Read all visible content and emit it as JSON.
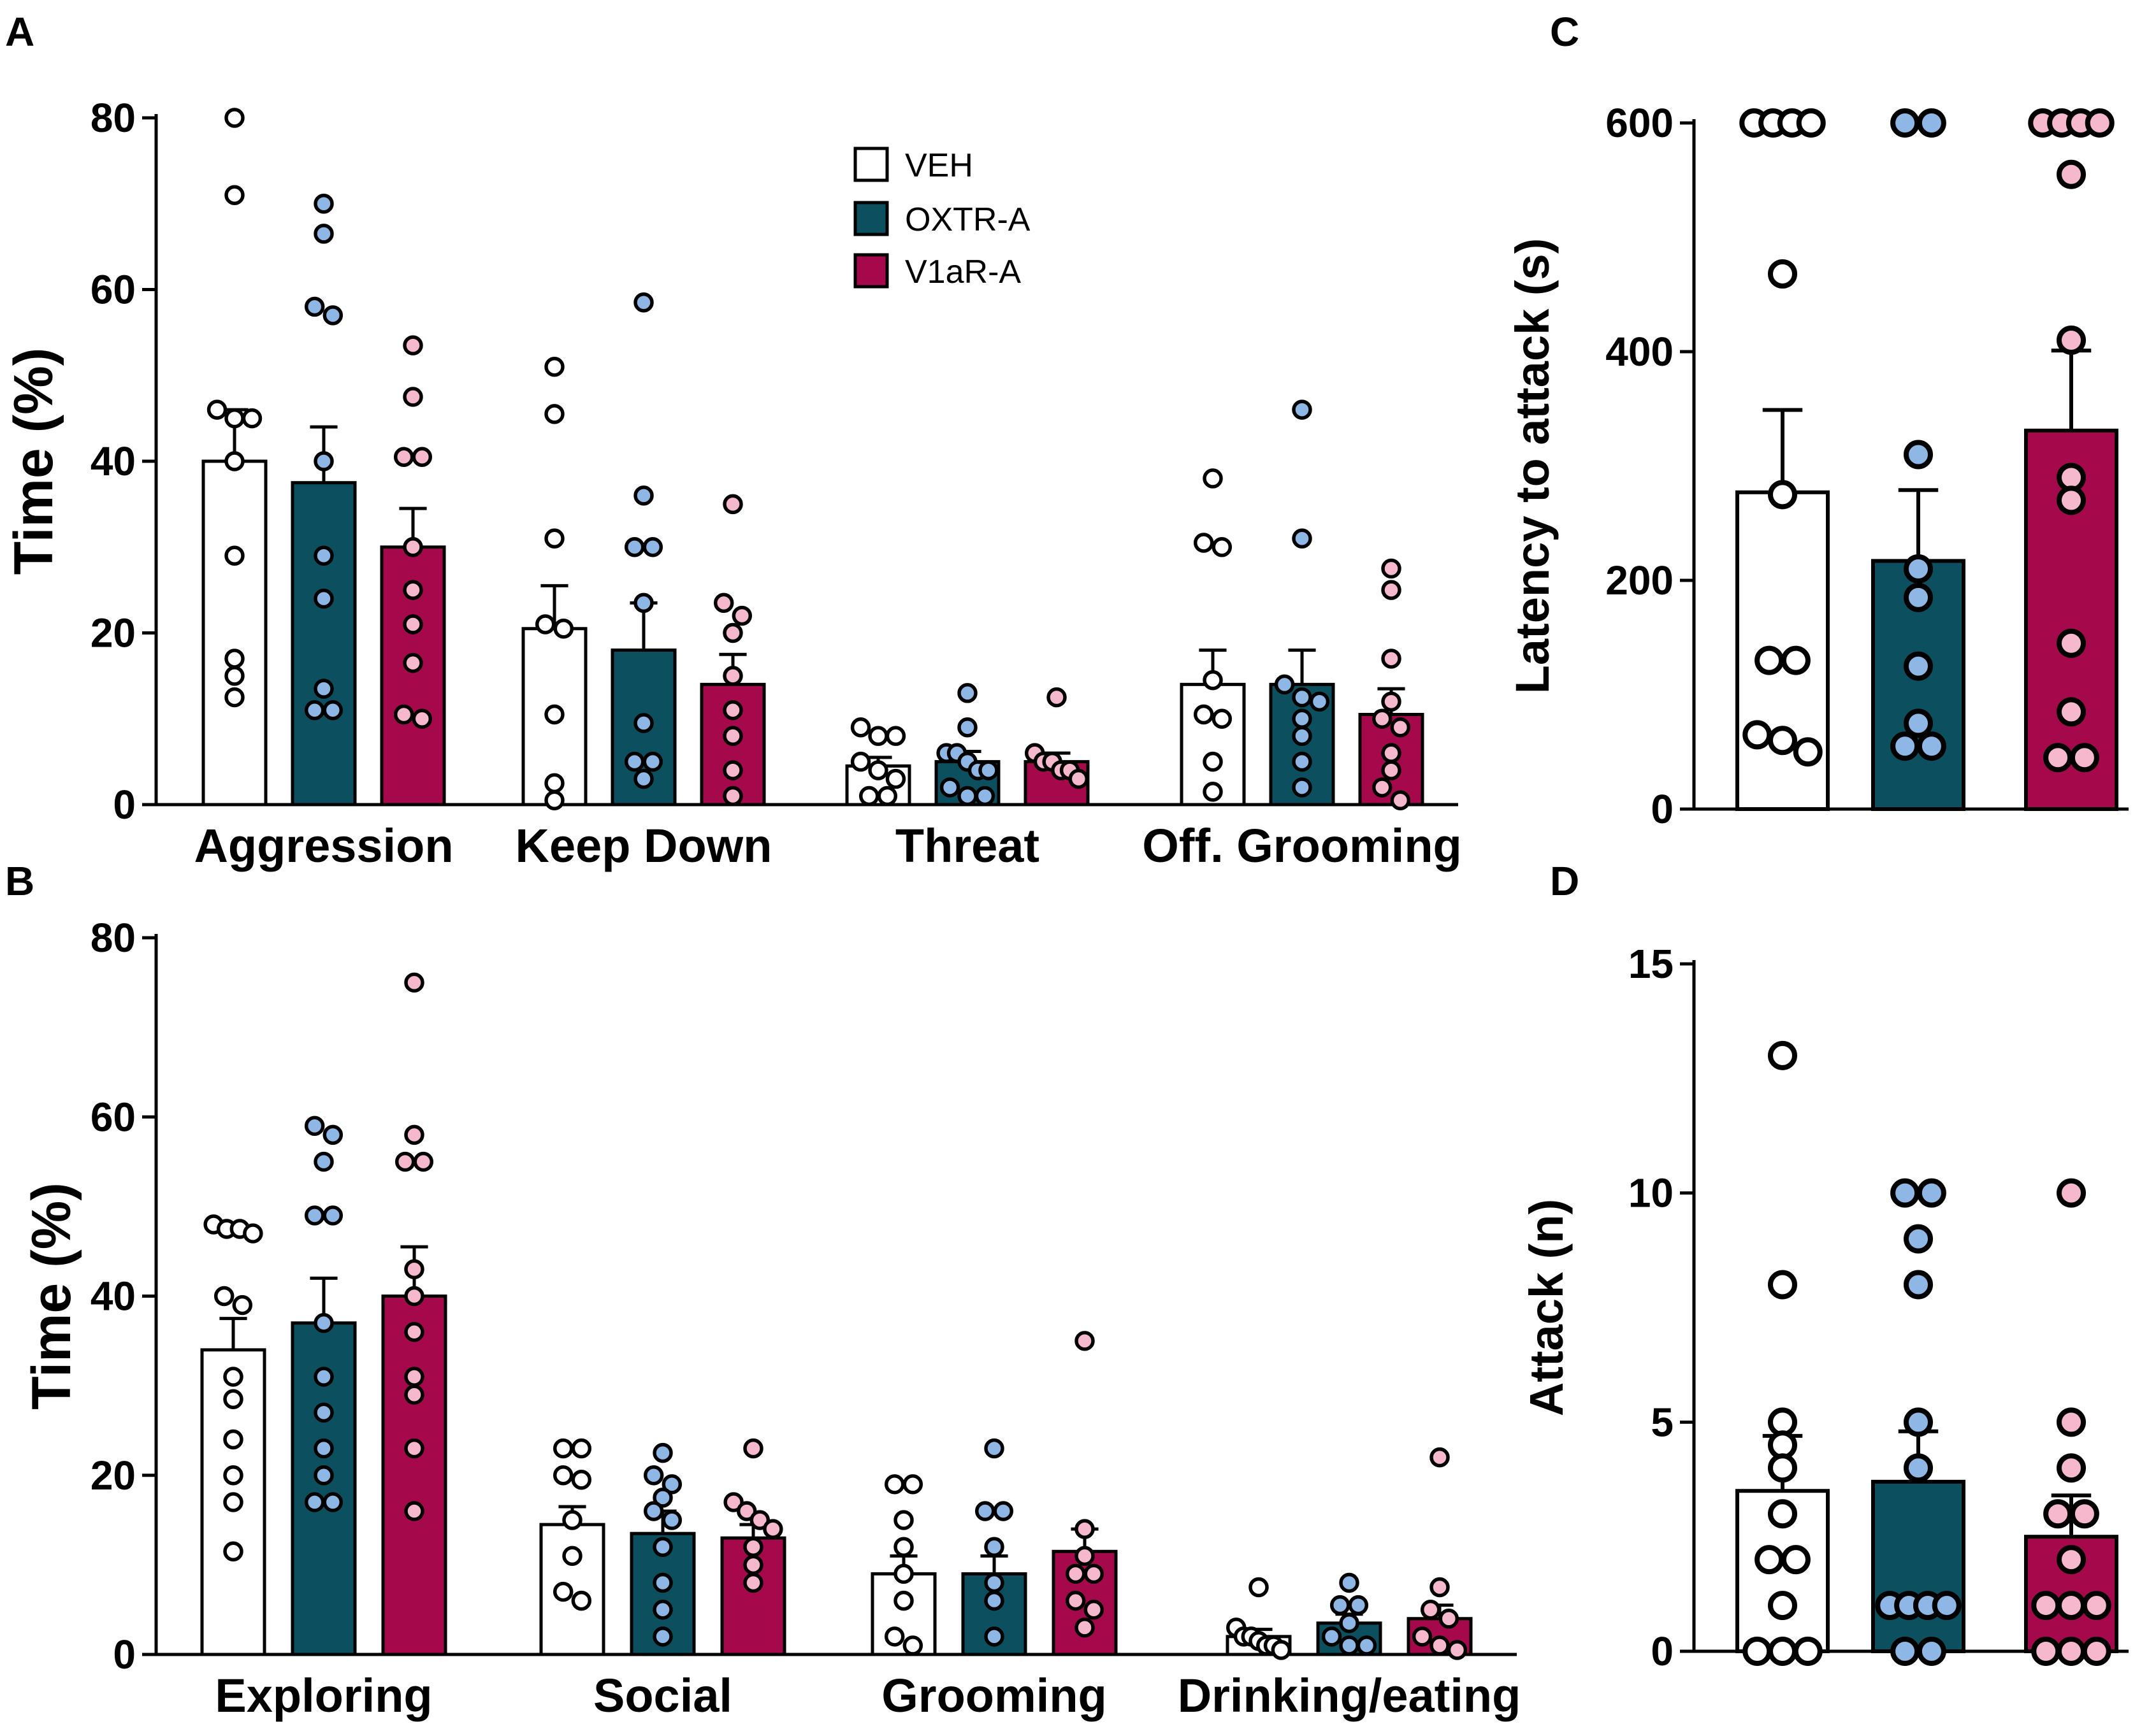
{
  "colors": {
    "VEH": "#ffffff",
    "OXTR-A": "#0c4f5f",
    "V1aR-A": "#a5094c",
    "VEH_dot": "#ffffff",
    "OXTR-A_dot": "#8fb7e6",
    "V1aR-A_dot": "#f5b8cc"
  },
  "legend": [
    "VEH",
    "OXTR-A",
    "V1aR-A"
  ],
  "chart_data": [
    {
      "panel": "A",
      "type": "bar",
      "ylabel": "Time (%)",
      "ylim": [
        0,
        80
      ],
      "yticks": [
        0,
        20,
        40,
        60,
        80
      ],
      "categories": [
        "Aggression",
        "Keep Down",
        "Threat",
        "Off. Grooming"
      ],
      "series": [
        {
          "name": "VEH",
          "values": [
            40,
            20.5,
            4.5,
            14
          ],
          "sem": [
            6,
            5,
            1,
            4
          ],
          "points": [
            [
              80,
              71,
              46,
              45,
              45,
              40,
              29,
              17,
              15,
              12.5
            ],
            [
              51,
              45.5,
              31,
              21,
              20.5,
              10.5,
              2.5,
              0.5
            ],
            [
              8,
              8,
              9,
              5,
              4,
              3,
              1,
              1
            ],
            [
              38,
              30.5,
              30,
              14.5,
              10.5,
              10,
              5,
              1.5
            ]
          ]
        },
        {
          "name": "OXTR-A",
          "values": [
            37.5,
            18,
            5,
            14
          ],
          "sem": [
            6.5,
            5.5,
            1.2,
            4
          ],
          "points": [
            [
              70,
              66.5,
              58,
              57,
              40,
              29,
              24,
              13.5,
              11,
              11
            ],
            [
              58.5,
              36,
              30,
              30,
              23.5,
              9.5,
              5,
              5,
              3
            ],
            [
              13,
              9,
              6,
              6,
              5,
              4,
              4,
              2,
              1,
              1
            ],
            [
              46,
              31,
              14,
              12.5,
              12,
              10,
              8,
              5,
              2
            ]
          ]
        },
        {
          "name": "V1aR-A",
          "values": [
            30,
            14,
            5,
            10.5
          ],
          "sem": [
            4.5,
            3.5,
            1,
            3
          ],
          "points": [
            [
              53.5,
              47.5,
              40.5,
              40.5,
              30,
              25,
              21,
              16.5,
              10.5,
              10
            ],
            [
              35,
              23.5,
              22,
              20,
              15,
              11,
              8,
              4,
              1
            ],
            [
              12.5,
              6,
              5,
              5,
              4,
              4,
              3
            ],
            [
              27.5,
              25,
              17,
              12,
              10,
              9,
              6,
              4,
              2,
              0.5
            ]
          ]
        }
      ]
    },
    {
      "panel": "B",
      "type": "bar",
      "ylabel": "Time (%)",
      "ylim": [
        0,
        80
      ],
      "yticks": [
        0,
        20,
        40,
        60,
        80
      ],
      "categories": [
        "Exploring",
        "Social",
        "Grooming",
        "Drinking/eating"
      ],
      "series": [
        {
          "name": "VEH",
          "values": [
            34,
            14.5,
            9,
            2
          ],
          "sem": [
            3.5,
            2,
            2,
            0.8
          ],
          "points": [
            [
              48,
              47.5,
              47,
              47.5,
              40,
              39,
              31,
              28.5,
              24,
              20,
              17,
              11.5
            ],
            [
              23,
              23,
              20,
              19.5,
              15,
              11,
              7,
              6
            ],
            [
              19,
              19,
              15,
              12,
              9,
              6,
              2,
              1
            ],
            [
              7.5,
              3,
              2,
              2,
              1.5,
              1,
              1,
              0.5
            ]
          ]
        },
        {
          "name": "OXTR-A",
          "values": [
            37,
            13.5,
            9,
            3.5
          ],
          "sem": [
            5,
            2.5,
            2,
            1
          ],
          "points": [
            [
              59,
              58,
              55,
              49,
              49,
              37,
              31,
              27,
              23,
              20,
              17,
              17
            ],
            [
              22.5,
              20,
              19,
              17.5,
              16,
              15,
              12,
              8,
              5,
              2
            ],
            [
              23,
              16,
              16,
              12,
              8,
              6,
              2
            ],
            [
              8,
              5.5,
              5.5,
              3.5,
              2,
              1,
              1
            ]
          ]
        },
        {
          "name": "V1aR-A",
          "values": [
            40,
            13,
            11.5,
            4
          ],
          "sem": [
            5.5,
            1.5,
            2.5,
            1.5
          ],
          "points": [
            [
              75,
              58,
              55,
              55,
              43,
              40,
              36,
              31,
              29,
              23,
              16
            ],
            [
              23,
              17,
              16,
              15,
              14,
              12,
              10,
              8
            ],
            [
              35,
              14,
              11,
              9,
              9,
              6,
              5,
              3
            ],
            [
              22,
              7.5,
              5,
              4,
              2,
              1,
              0.5
            ]
          ]
        }
      ]
    },
    {
      "panel": "C",
      "type": "bar",
      "ylabel": "Latency to attack (s)",
      "ylim": [
        0,
        600
      ],
      "yticks": [
        0,
        200,
        400,
        600
      ],
      "categories": [
        "VEH",
        "OXTR-A",
        "V1aR-A"
      ],
      "values": [
        277,
        217,
        331
      ],
      "sem": [
        72,
        62,
        70
      ],
      "points": [
        [
          600,
          600,
          600,
          600,
          468,
          275,
          130,
          130,
          65,
          60,
          50
        ],
        [
          600,
          600,
          310,
          210,
          185,
          125,
          75,
          55,
          55
        ],
        [
          600,
          600,
          600,
          600,
          555,
          410,
          290,
          270,
          145,
          85,
          45,
          45
        ]
      ]
    },
    {
      "panel": "D",
      "type": "bar",
      "ylabel": "Attack (n)",
      "ylim": [
        0,
        15
      ],
      "yticks": [
        0,
        5,
        10,
        15
      ],
      "categories": [
        "VEH",
        "OXTR-A",
        "V1aR-A"
      ],
      "values": [
        3.5,
        3.7,
        2.5
      ],
      "sem": [
        1.2,
        1.1,
        0.9
      ],
      "points": [
        [
          13,
          8,
          5,
          4.5,
          4,
          3,
          2,
          2,
          1,
          0,
          0,
          0
        ],
        [
          10,
          10,
          9,
          8,
          5,
          4,
          1,
          1,
          1,
          1,
          0,
          0
        ],
        [
          10,
          5,
          4,
          3,
          3,
          2,
          1,
          1,
          1,
          0,
          0,
          0
        ]
      ]
    }
  ]
}
